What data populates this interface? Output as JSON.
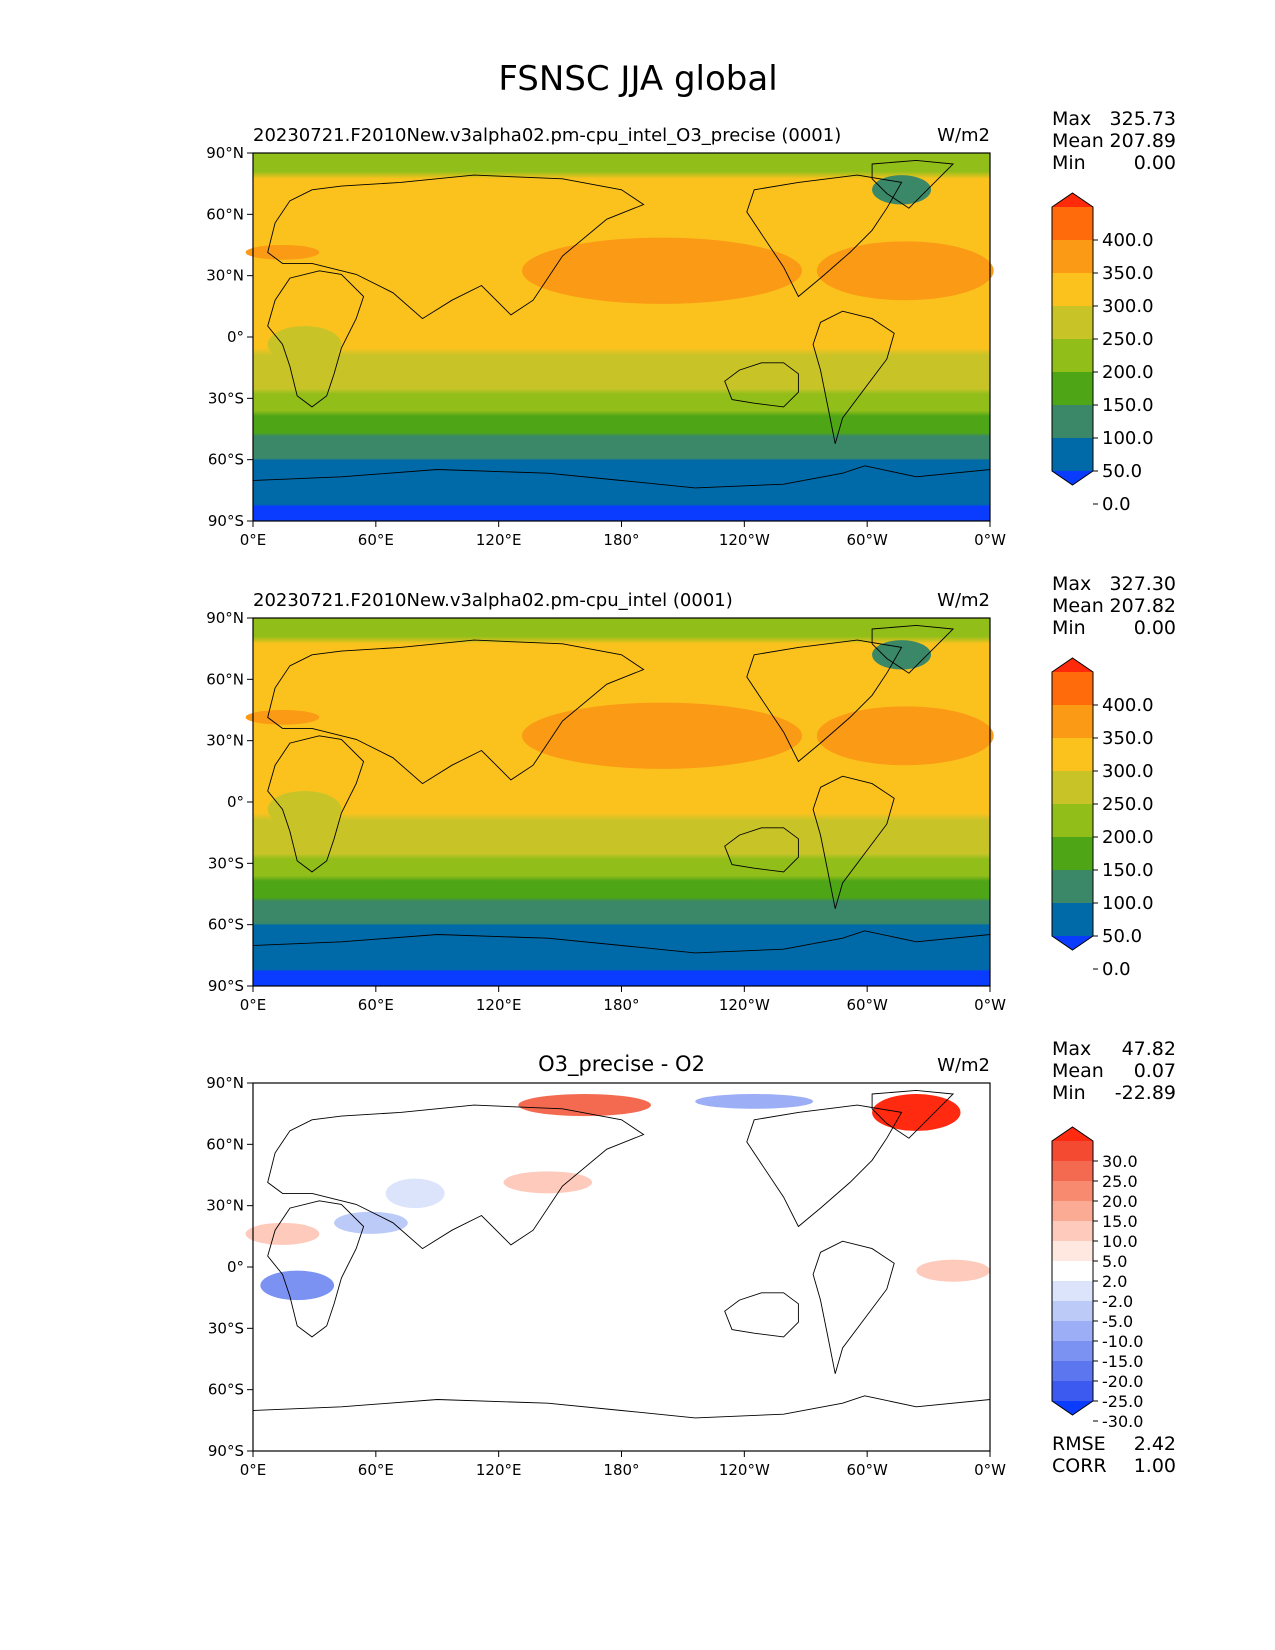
{
  "title": "FSNSC JJA global",
  "units": "W/m2",
  "x_ticks": [
    "0°E",
    "60°E",
    "120°E",
    "180°",
    "120°W",
    "60°W",
    "0°W"
  ],
  "y_ticks": [
    "90°N",
    "60°N",
    "30°N",
    "0°",
    "30°S",
    "60°S",
    "90°S"
  ],
  "stat_labels": {
    "max": "Max",
    "mean": "Mean",
    "min": "Min",
    "rmse": "RMSE",
    "corr": "CORR"
  },
  "panels": [
    {
      "subtitle": "20230721.F2010New.v3alpha02.pm-cpu_intel_O3_precise (0001)",
      "title_align": "left",
      "stats": {
        "max": "325.73",
        "mean": "207.89",
        "min": "0.00"
      },
      "colorbar": {
        "labels": [
          "400.0",
          "350.0",
          "300.0",
          "250.0",
          "200.0",
          "150.0",
          "100.0",
          "50.0",
          "0.0"
        ],
        "colors": [
          "#ff2a0a",
          "#ff6a0a",
          "#fb9a14",
          "#fbc21e",
          "#c8c428",
          "#92be1a",
          "#4ea616",
          "#3a8868",
          "#006aa8",
          "#0a3cff"
        ]
      }
    },
    {
      "subtitle": "20230721.F2010New.v3alpha02.pm-cpu_intel (0001)",
      "title_align": "left",
      "stats": {
        "max": "327.30",
        "mean": "207.82",
        "min": "0.00"
      },
      "colorbar": {
        "labels": [
          "400.0",
          "350.0",
          "300.0",
          "250.0",
          "200.0",
          "150.0",
          "100.0",
          "50.0",
          "0.0"
        ],
        "colors": [
          "#ff2a0a",
          "#ff6a0a",
          "#fb9a14",
          "#fbc21e",
          "#c8c428",
          "#92be1a",
          "#4ea616",
          "#3a8868",
          "#006aa8",
          "#0a3cff"
        ]
      }
    },
    {
      "subtitle": "O3_precise - O2",
      "title_align": "center",
      "stats": {
        "max": "47.82",
        "mean": "0.07",
        "min": "-22.89",
        "rmse": "2.42",
        "corr": "1.00"
      },
      "colorbar": {
        "labels": [
          "30.0",
          "25.0",
          "20.0",
          "15.0",
          "10.0",
          "5.0",
          "2.0",
          "-2.0",
          "-5.0",
          "-10.0",
          "-15.0",
          "-20.0",
          "-25.0",
          "-30.0"
        ],
        "colors": [
          "#ff2a10",
          "#f44a32",
          "#f46a50",
          "#f88a70",
          "#fbaa94",
          "#fdcabc",
          "#fee8e0",
          "#ffffff",
          "#dce4fb",
          "#bccaf8",
          "#9caef5",
          "#7c92f2",
          "#5c76ef",
          "#3c5af0",
          "#0a3cff"
        ]
      }
    }
  ]
}
